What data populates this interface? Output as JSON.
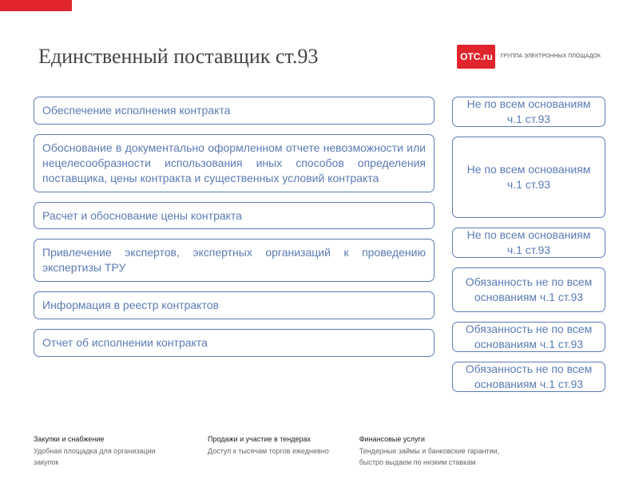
{
  "colors": {
    "brand_red": "#e0252d",
    "box_border": "#5b7bb5",
    "text_muted": "#666"
  },
  "header": {
    "title": "Единственный поставщик ст.93",
    "logo_badge": "OTC.ru",
    "logo_text": "ГРУППА ЭЛЕКТРОННЫХ ПЛОЩАДОК"
  },
  "left_items": [
    "Обеспечение исполнения контракта",
    "Обоснование в документально оформленном отчете невозможности или нецелесообразности использования иных способов определения поставщика, цены контракта и существенных условий контракта",
    "Расчет и обоснование цены контракта",
    "Привлечение экспертов, экспертных организаций к проведению экспертизы ТРУ",
    "Информация в реестр контрактов",
    "Отчет об исполнении контракта"
  ],
  "right_items": [
    "Не по всем основаниям ч.1 ст.93",
    "Не по всем основаниям ч.1 ст.93",
    "Не по всем основаниям ч.1 ст.93",
    "Обязанность не по всем основаниям ч.1 ст.93",
    "Обязанность не по всем основаниям ч.1 ст.93",
    "Обязанность не по всем основаниям ч.1 ст.93"
  ],
  "footer": [
    {
      "heading": "Закупки и снабжение",
      "sub": "Удобная площадка для организации закупок"
    },
    {
      "heading": "Продажи и участие в тендерах",
      "sub": "Доступ к тысячам торгов ежедневно"
    },
    {
      "heading": "Финансовые услуги",
      "sub": "Тендерные займы и банковские гарантии, быстро выдаем по низким ставкам"
    }
  ]
}
